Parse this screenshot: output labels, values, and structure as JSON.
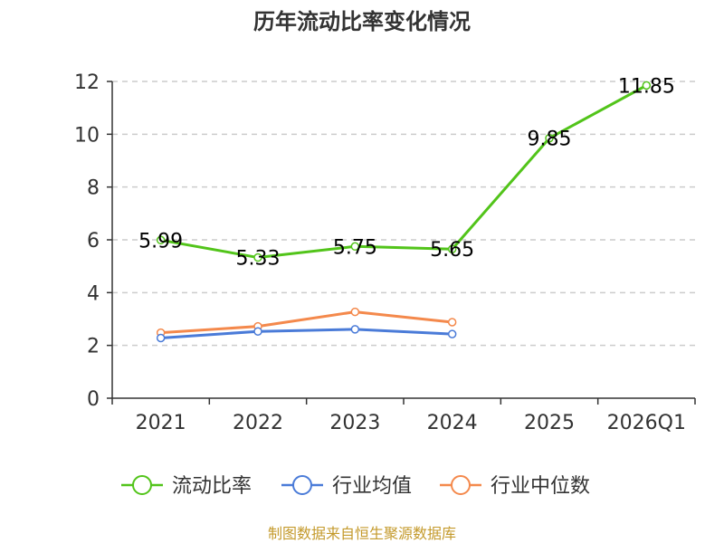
{
  "chart_data": {
    "type": "line",
    "title": "历年流动比率变化情况",
    "categories": [
      "2021",
      "2022",
      "2023",
      "2024",
      "2025",
      "2026Q1"
    ],
    "ylim": [
      0,
      12
    ],
    "yticks": [
      0,
      2,
      4,
      6,
      8,
      10,
      12
    ],
    "grid": "horizontal-dashed",
    "legend_position": "bottom",
    "series": [
      {
        "name": "流动比率",
        "color": "#52c41a",
        "values": [
          5.99,
          5.33,
          5.75,
          5.65,
          9.85,
          11.85
        ],
        "labels": [
          "5.99",
          "5.33",
          "5.75",
          "5.65",
          "9.85",
          "11.85"
        ]
      },
      {
        "name": "行业均值",
        "color": "#4a7bd8",
        "values": [
          2.28,
          2.53,
          2.61,
          2.43,
          null,
          null
        ]
      },
      {
        "name": "行业中位数",
        "color": "#f4894c",
        "values": [
          2.48,
          2.72,
          3.27,
          2.88,
          null,
          null
        ]
      }
    ],
    "source": "制图数据来自恒生聚源数据库"
  }
}
